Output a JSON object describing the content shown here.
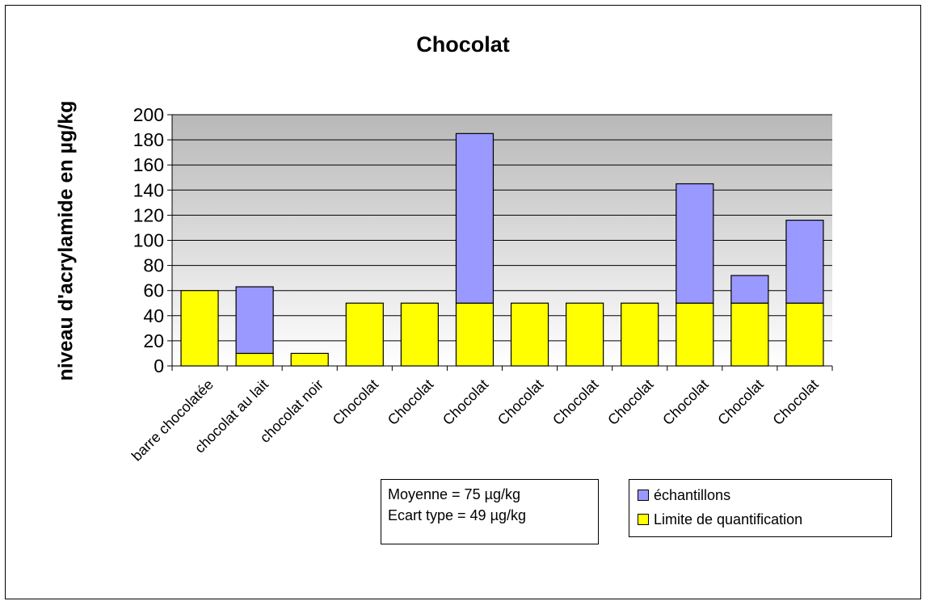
{
  "chart_data": {
    "type": "bar",
    "stacked": true,
    "title": "Chocolat",
    "xlabel": "",
    "ylabel": "niveau d'acrylamide en µg/kg",
    "ylim": [
      0,
      200
    ],
    "yticks": [
      0,
      20,
      40,
      60,
      80,
      100,
      120,
      140,
      160,
      180,
      200
    ],
    "grid": true,
    "categories": [
      "barre chocolatée",
      "chocolat au lait",
      "chocolat noir",
      "Chocolat",
      "Chocolat",
      "Chocolat",
      "Chocolat",
      "Chocolat",
      "Chocolat",
      "Chocolat",
      "Chocolat",
      "Chocolat"
    ],
    "series": [
      {
        "name": "Limite de quantification",
        "color": "#ffff00",
        "values": [
          60,
          10,
          10,
          50,
          50,
          50,
          50,
          50,
          50,
          50,
          50,
          50
        ]
      },
      {
        "name": "échantillons",
        "color": "#9999ff",
        "values": [
          0,
          53,
          0,
          0,
          0,
          135,
          0,
          0,
          0,
          95,
          22,
          66
        ]
      }
    ],
    "legend_position": "bottom-right",
    "annotations": [
      "Moyenne = 75 µg/kg",
      "Ecart type = 49 µg/kg"
    ]
  },
  "stats": {
    "mean": "Moyenne = 75 µg/kg",
    "stdev": "Ecart type = 49 µg/kg"
  },
  "legend": {
    "samples": "échantillons",
    "loq": "Limite de quantification"
  },
  "colors": {
    "plot_area_top": "#b8b8b8",
    "plot_area_bottom": "#ffffff",
    "samples": "#9999ff",
    "loq": "#ffff00"
  }
}
